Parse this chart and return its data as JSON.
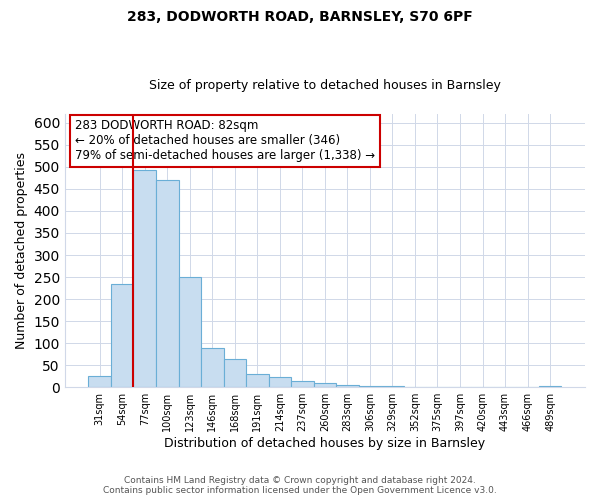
{
  "title": "283, DODWORTH ROAD, BARNSLEY, S70 6PF",
  "subtitle": "Size of property relative to detached houses in Barnsley",
  "xlabel": "Distribution of detached houses by size in Barnsley",
  "ylabel": "Number of detached properties",
  "bar_labels": [
    "31sqm",
    "54sqm",
    "77sqm",
    "100sqm",
    "123sqm",
    "146sqm",
    "168sqm",
    "191sqm",
    "214sqm",
    "237sqm",
    "260sqm",
    "283sqm",
    "306sqm",
    "329sqm",
    "352sqm",
    "375sqm",
    "397sqm",
    "420sqm",
    "443sqm",
    "466sqm",
    "489sqm"
  ],
  "bar_values": [
    26,
    234,
    493,
    470,
    250,
    88,
    63,
    31,
    23,
    14,
    10,
    5,
    3,
    2,
    1,
    1,
    1,
    0,
    0,
    0,
    3
  ],
  "bar_color": "#c8ddf0",
  "bar_edge_color": "#6aaed6",
  "highlight_bar_index": 2,
  "highlight_color": "#cc0000",
  "ylim": [
    0,
    620
  ],
  "yticks": [
    0,
    50,
    100,
    150,
    200,
    250,
    300,
    350,
    400,
    450,
    500,
    550,
    600
  ],
  "annotation_title": "283 DODWORTH ROAD: 82sqm",
  "annotation_line1": "← 20% of detached houses are smaller (346)",
  "annotation_line2": "79% of semi-detached houses are larger (1,338) →",
  "footer_line1": "Contains HM Land Registry data © Crown copyright and database right 2024.",
  "footer_line2": "Contains public sector information licensed under the Open Government Licence v3.0.",
  "background_color": "#ffffff",
  "grid_color": "#d0d8e8"
}
